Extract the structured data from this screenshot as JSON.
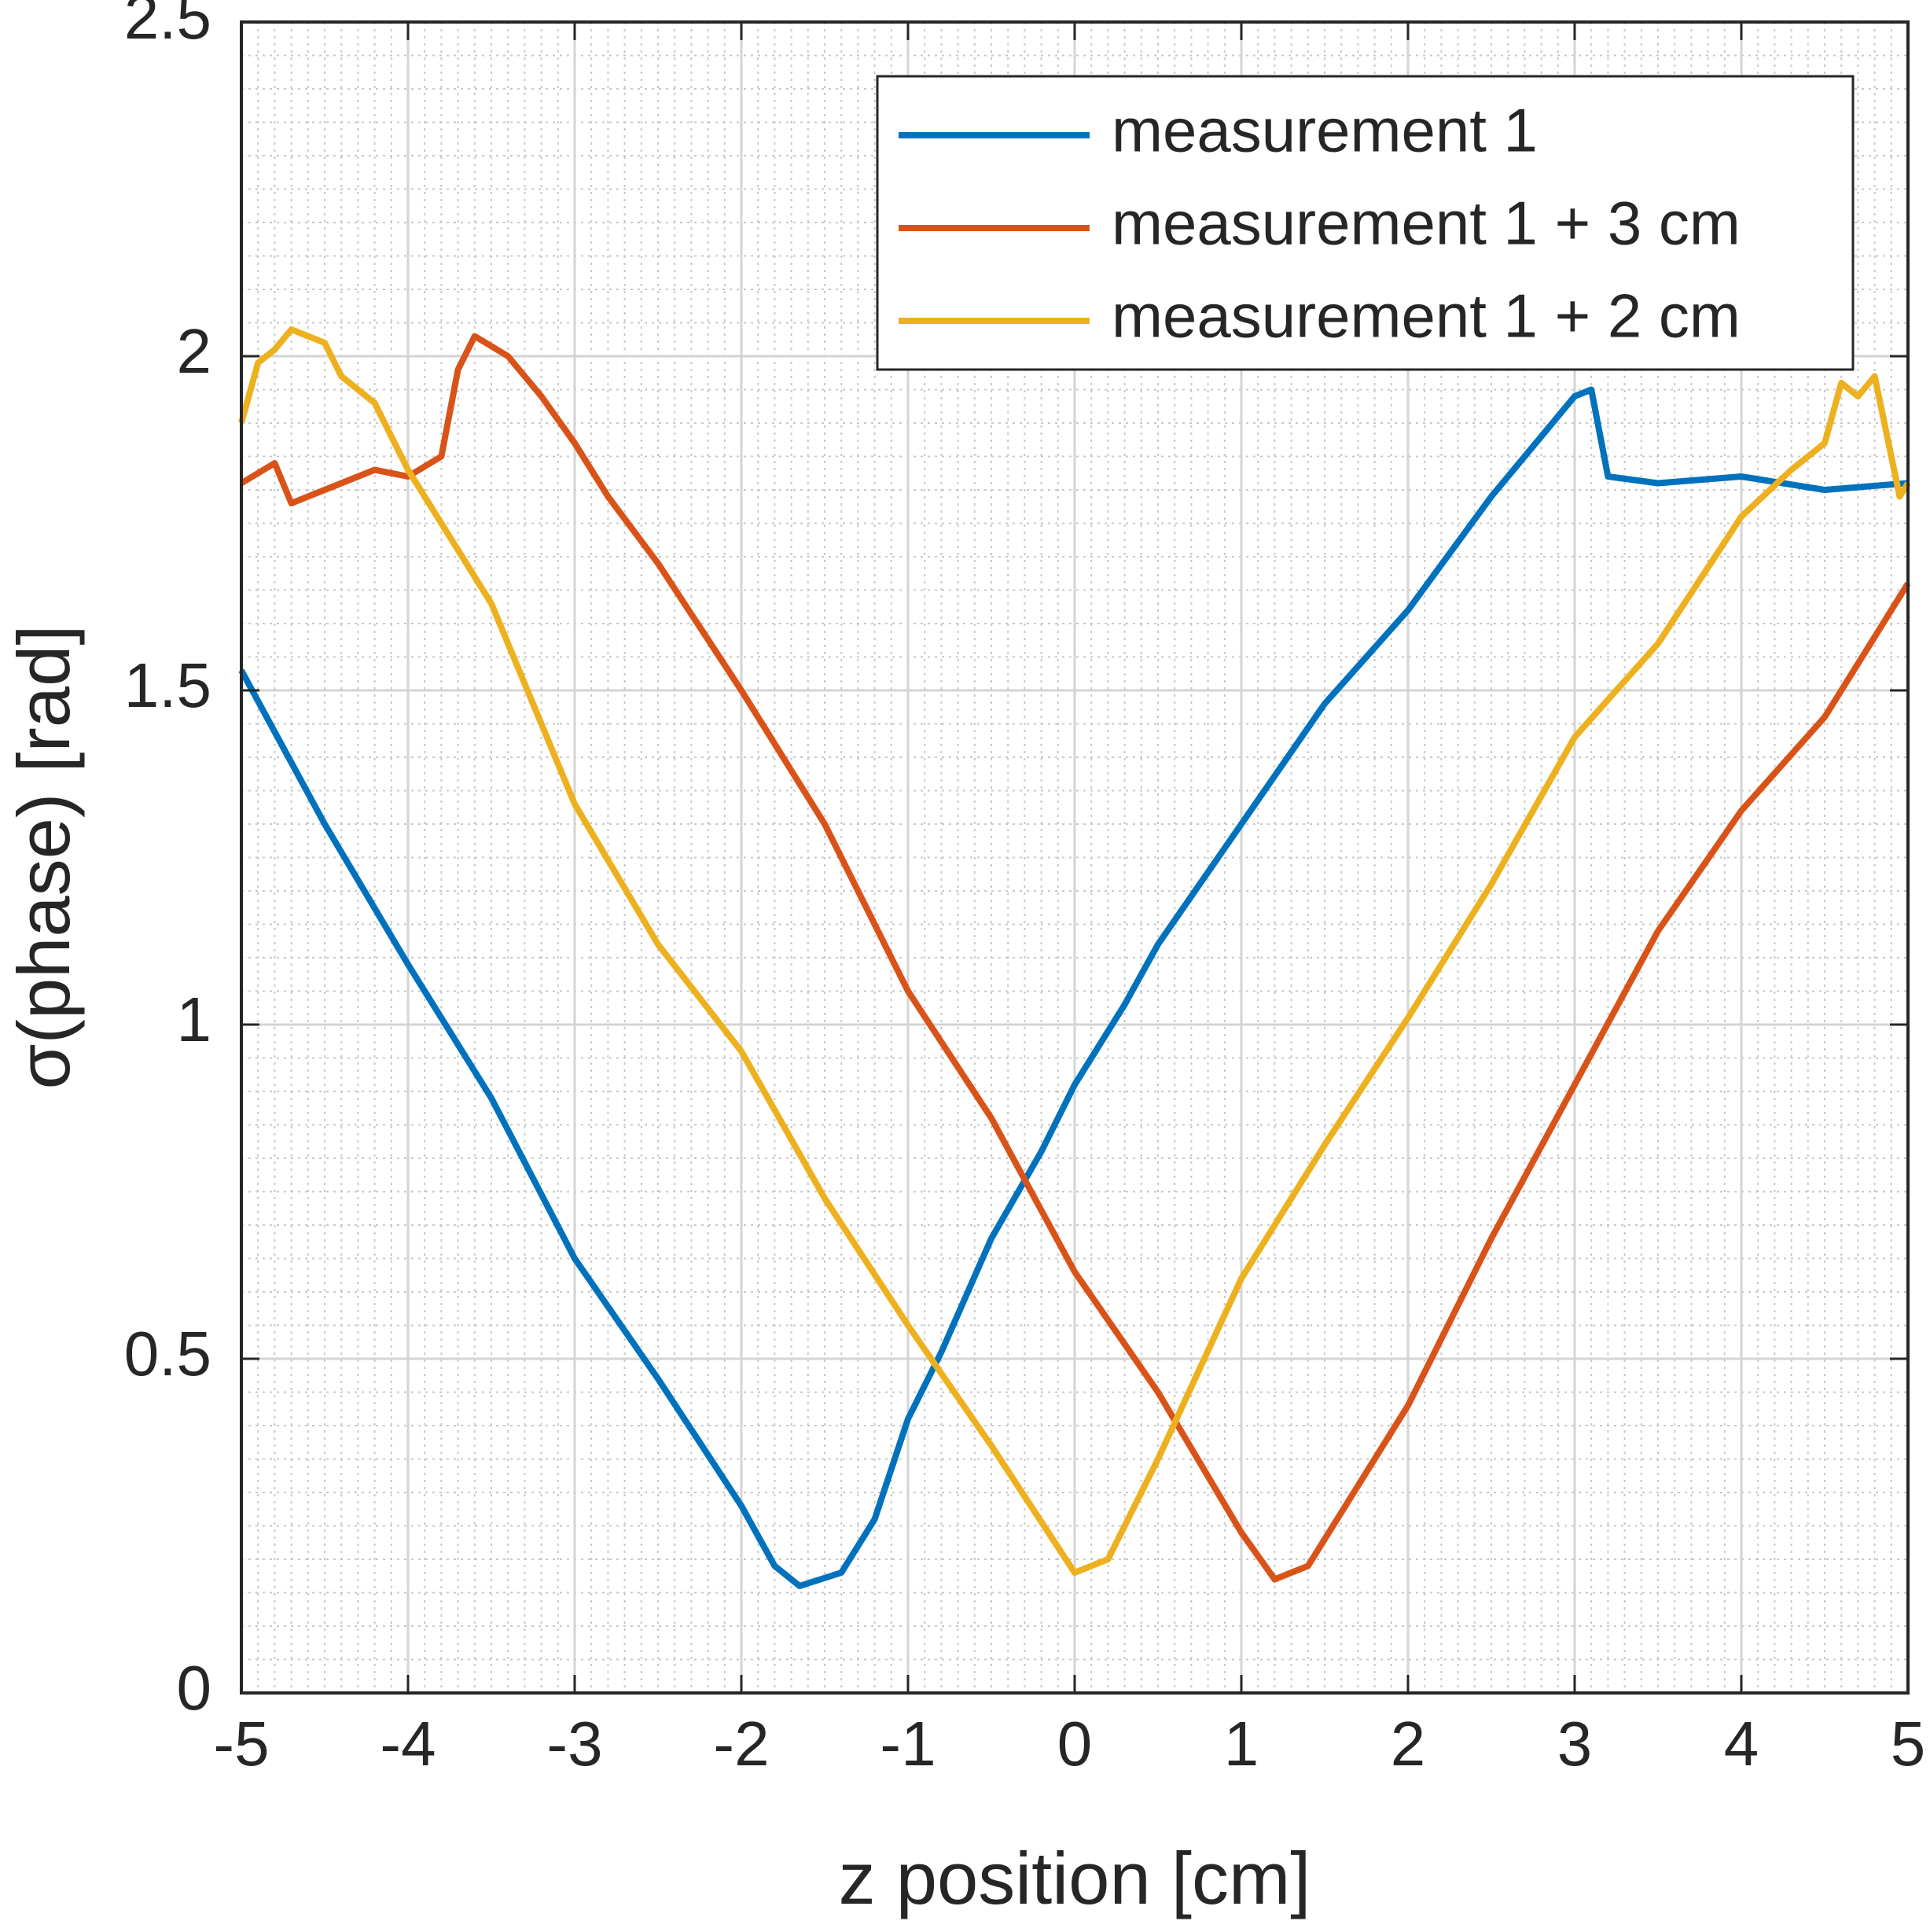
{
  "chart_data": {
    "type": "line",
    "xlabel": "z position [cm]",
    "ylabel": "σ(phase) [rad]",
    "xlim": [
      -5,
      5
    ],
    "xticks": [
      -5,
      -4,
      -3,
      -2,
      -1,
      0,
      1,
      2,
      3,
      4,
      5
    ],
    "ylim": [
      0,
      2.5
    ],
    "yticks": [
      0,
      0.5,
      1,
      1.5,
      2,
      2.5
    ],
    "grid": true,
    "minor_grid": true,
    "legend": "upper right",
    "series": [
      {
        "name": "measurement 1",
        "color": "#0072bd",
        "x": [
          -5,
          -4.5,
          -4,
          -3.5,
          -3,
          -2.5,
          -2,
          -1.8,
          -1.65,
          -1.4,
          -1.2,
          -1,
          -0.8,
          -0.5,
          -0.2,
          0,
          0.3,
          0.5,
          1,
          1.5,
          2,
          2.5,
          3,
          3.1,
          3.2,
          3.5,
          4,
          4.5,
          5
        ],
        "values": [
          1.53,
          1.3,
          1.09,
          0.89,
          0.65,
          0.47,
          0.28,
          0.19,
          0.16,
          0.18,
          0.26,
          0.41,
          0.51,
          0.68,
          0.81,
          0.91,
          1.03,
          1.12,
          1.3,
          1.48,
          1.62,
          1.79,
          1.94,
          1.95,
          1.82,
          1.81,
          1.82,
          1.8,
          1.81
        ]
      },
      {
        "name": "measurement 1 + 3 cm",
        "color": "#d95319",
        "x": [
          -5,
          -4.8,
          -4.7,
          -4.5,
          -4.2,
          -4,
          -3.8,
          -3.7,
          -3.6,
          -3.4,
          -3.2,
          -3,
          -2.8,
          -2.5,
          -2,
          -1.5,
          -1,
          -0.5,
          0,
          0.5,
          1,
          1.2,
          1.4,
          1.6,
          2,
          2.5,
          3,
          3.5,
          4,
          4.5,
          5
        ],
        "values": [
          1.81,
          1.84,
          1.78,
          1.8,
          1.83,
          1.82,
          1.85,
          1.98,
          2.03,
          2.0,
          1.94,
          1.87,
          1.79,
          1.69,
          1.5,
          1.3,
          1.05,
          0.86,
          0.63,
          0.45,
          0.24,
          0.17,
          0.19,
          0.27,
          0.43,
          0.68,
          0.91,
          1.14,
          1.32,
          1.46,
          1.66
        ]
      },
      {
        "name": "measurement 1 + 2 cm",
        "color": "#edb120",
        "x": [
          -5,
          -4.9,
          -4.8,
          -4.7,
          -4.5,
          -4.4,
          -4.2,
          -4,
          -3.5,
          -3,
          -2.5,
          -2,
          -1.5,
          -1,
          -0.5,
          0,
          0.2,
          0.5,
          1,
          1.5,
          2,
          2.5,
          3,
          3.5,
          4,
          4.3,
          4.5,
          4.6,
          4.7,
          4.8,
          4.95,
          5
        ],
        "values": [
          1.9,
          1.99,
          2.01,
          2.04,
          2.02,
          1.97,
          1.93,
          1.83,
          1.63,
          1.33,
          1.12,
          0.96,
          0.74,
          0.55,
          0.37,
          0.18,
          0.2,
          0.35,
          0.62,
          0.82,
          1.01,
          1.21,
          1.43,
          1.57,
          1.76,
          1.83,
          1.87,
          1.96,
          1.94,
          1.97,
          1.79,
          1.81
        ]
      }
    ]
  }
}
